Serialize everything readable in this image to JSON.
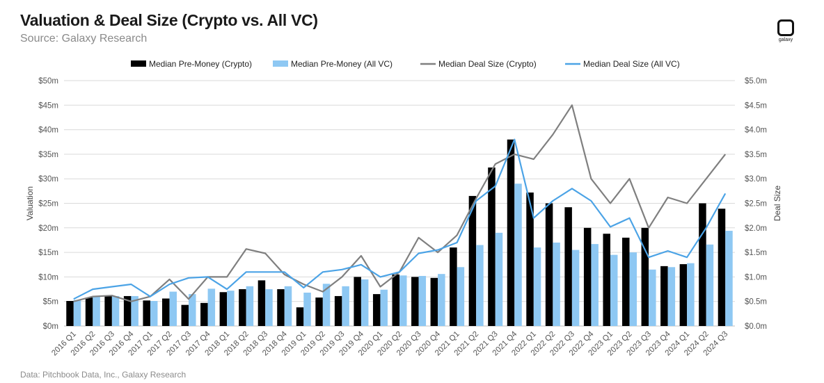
{
  "header": {
    "title": "Valuation & Deal Size (Crypto vs. All VC)",
    "subtitle": "Source: Galaxy Research",
    "logo_text": "galaxy",
    "footer": "Data: Pitchbook Data, Inc., Galaxy Research"
  },
  "colors": {
    "crypto_bar": "#000000",
    "allvc_bar": "#8ec8f3",
    "crypto_line": "#7f7f7f",
    "allvc_line": "#4ba3e6",
    "grid": "#d9d9d9"
  },
  "chart_data": {
    "type": "bar",
    "title": "Valuation & Deal Size (Crypto vs. All VC)",
    "ylabel": "Valuation",
    "y2label": "Deal Size",
    "ylim": [
      0,
      50
    ],
    "y2lim": [
      0,
      5
    ],
    "yticks": [
      "$0m",
      "$5m",
      "$10m",
      "$15m",
      "$20m",
      "$25m",
      "$30m",
      "$35m",
      "$40m",
      "$45m",
      "$50m"
    ],
    "y2ticks": [
      "$0.0m",
      "$0.5m",
      "$1.0m",
      "$1.5m",
      "$2.0m",
      "$2.5m",
      "$3.0m",
      "$3.5m",
      "$4.0m",
      "$4.5m",
      "$5.0m"
    ],
    "legend_position": "top-center",
    "grid": true,
    "categories": [
      "2016 Q1",
      "2016 Q2",
      "2016 Q3",
      "2016 Q4",
      "2017 Q1",
      "2017 Q2",
      "2017 Q3",
      "2017 Q4",
      "2018 Q1",
      "2018 Q2",
      "2018 Q3",
      "2018 Q4",
      "2019 Q1",
      "2019 Q2",
      "2019 Q3",
      "2019 Q4",
      "2020 Q1",
      "2020 Q2",
      "2020 Q3",
      "2020 Q4",
      "2021 Q1",
      "2021 Q2",
      "2021 Q3",
      "2021 Q4",
      "2022 Q1",
      "2022 Q2",
      "2022 Q3",
      "2022 Q4",
      "2023 Q1",
      "2023 Q2",
      "2023 Q3",
      "2023 Q4",
      "2024 Q1",
      "2024 Q2",
      "2024 Q3"
    ],
    "series": [
      {
        "name": "Median Pre-Money (Crypto)",
        "kind": "bar",
        "axis": "left",
        "values": [
          5.1,
          5.8,
          6.2,
          6.1,
          5.2,
          5.6,
          4.3,
          4.7,
          6.9,
          7.5,
          9.3,
          7.5,
          3.8,
          5.8,
          6.1,
          10.0,
          6.5,
          10.5,
          10.0,
          9.8,
          16.0,
          26.5,
          32.3,
          38.0,
          27.2,
          25.0,
          24.2,
          20.0,
          18.8,
          18.0,
          20.0,
          12.2,
          12.6,
          25.0,
          23.9
        ]
      },
      {
        "name": "Median Pre-Money (All VC)",
        "kind": "bar",
        "axis": "left",
        "values": [
          5.3,
          6.0,
          6.1,
          6.1,
          5.1,
          7.0,
          6.5,
          7.6,
          7.2,
          8.1,
          7.5,
          8.1,
          6.8,
          8.6,
          8.1,
          9.5,
          7.4,
          10.3,
          10.2,
          10.6,
          12.0,
          16.5,
          19.0,
          29.0,
          16.0,
          17.0,
          15.5,
          16.7,
          14.5,
          15.0,
          11.5,
          12.0,
          12.8,
          16.6,
          19.4
        ]
      },
      {
        "name": "Median Deal Size (Crypto)",
        "kind": "line",
        "axis": "right",
        "values": [
          0.5,
          0.6,
          0.62,
          0.5,
          0.6,
          0.95,
          0.55,
          1.0,
          1.0,
          1.57,
          1.48,
          1.05,
          0.85,
          0.7,
          1.0,
          1.43,
          0.8,
          1.1,
          1.8,
          1.5,
          1.85,
          2.6,
          3.3,
          3.5,
          3.4,
          3.9,
          4.5,
          3.0,
          2.5,
          3.0,
          2.0,
          2.62,
          2.5,
          3.0,
          3.5
        ]
      },
      {
        "name": "Median Deal Size (All VC)",
        "kind": "line",
        "axis": "right",
        "values": [
          0.55,
          0.75,
          0.8,
          0.85,
          0.6,
          0.85,
          0.98,
          1.0,
          0.75,
          1.1,
          1.1,
          1.1,
          0.78,
          1.1,
          1.15,
          1.25,
          1.0,
          1.1,
          1.48,
          1.55,
          1.7,
          2.55,
          2.85,
          3.8,
          2.2,
          2.55,
          2.8,
          2.55,
          2.02,
          2.2,
          1.4,
          1.53,
          1.4,
          2.0,
          2.7
        ]
      }
    ]
  }
}
